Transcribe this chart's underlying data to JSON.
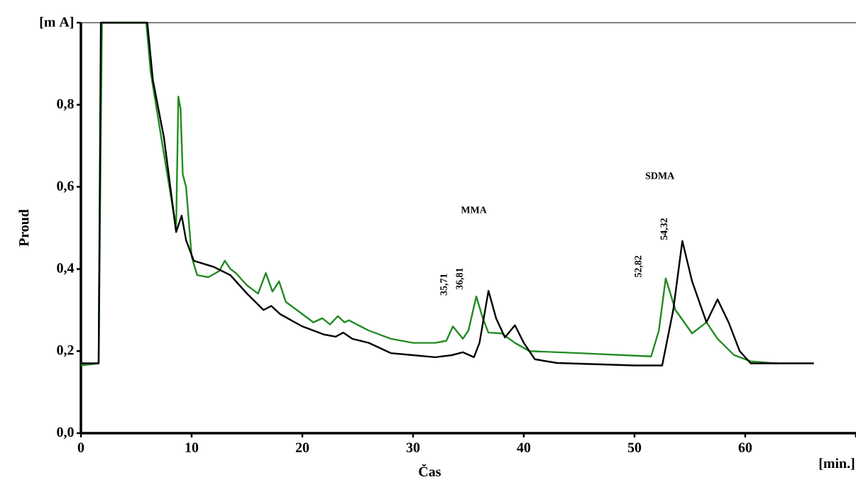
{
  "chart_data": {
    "type": "line",
    "xlabel": "Čas",
    "ylabel": "Proud",
    "xlim": [
      0,
      70
    ],
    "ylim": [
      0,
      1
    ],
    "xticks": [
      0,
      10,
      20,
      30,
      40,
      50,
      60,
      {
        "value": 70,
        "label": null
      }
    ],
    "yticks": [
      {
        "value": 0,
        "label": "0,0"
      },
      {
        "value": 0.2,
        "label": "0,2"
      },
      {
        "value": 0.4,
        "label": "0,4"
      },
      {
        "value": 0.6,
        "label": "0,6"
      },
      {
        "value": 0.8,
        "label": "0,8"
      },
      {
        "value": 1,
        "label": "[m A]"
      }
    ],
    "series": [
      {
        "color": "#228b22",
        "x": [
          0,
          1.6,
          1.9,
          5.9,
          6.3,
          7.5,
          8.6,
          8.8,
          9.0,
          9.2,
          9.5,
          10.0,
          10.5,
          11.5,
          12.5,
          13,
          13.5,
          14,
          15,
          16,
          16.7,
          17.3,
          17.9,
          18.5,
          19.5,
          21,
          21.8,
          22.5,
          23.2,
          23.8,
          24.2,
          26,
          28,
          30,
          32,
          33,
          33.6,
          34.5,
          35,
          35.71,
          36.3,
          36.8,
          38,
          39.2,
          40.5,
          45,
          51.5,
          52.2,
          52.82,
          53.7,
          55.2,
          56.5,
          57.5,
          59,
          60.5,
          62.9
        ],
        "values": [
          0.165,
          0.17,
          1.0,
          1.0,
          0.88,
          0.68,
          0.5,
          0.82,
          0.79,
          0.63,
          0.6,
          0.43,
          0.385,
          0.38,
          0.395,
          0.42,
          0.4,
          0.39,
          0.36,
          0.34,
          0.39,
          0.345,
          0.37,
          0.32,
          0.3,
          0.27,
          0.28,
          0.265,
          0.285,
          0.27,
          0.275,
          0.25,
          0.23,
          0.22,
          0.22,
          0.225,
          0.26,
          0.23,
          0.25,
          0.333,
          0.28,
          0.245,
          0.243,
          0.22,
          0.2,
          0.195,
          0.187,
          0.25,
          0.377,
          0.3,
          0.243,
          0.27,
          0.23,
          0.19,
          0.175,
          0.17
        ]
      },
      {
        "color": "#000000",
        "x": [
          0,
          1.6,
          1.8,
          6.0,
          6.5,
          7.5,
          8.6,
          9.1,
          9.5,
          10.2,
          12,
          13.5,
          15,
          16.5,
          17.2,
          18,
          20,
          22,
          23,
          23.7,
          24.5,
          26,
          28,
          30,
          32,
          33.5,
          34.5,
          35.5,
          36,
          36.81,
          37.5,
          38.3,
          39.2,
          40,
          41,
          43,
          50,
          52.5,
          53.5,
          54.32,
          55.2,
          56.5,
          57.5,
          58.5,
          59.5,
          60.5,
          66.2
        ],
        "values": [
          0.17,
          0.17,
          1.0,
          1.0,
          0.86,
          0.72,
          0.49,
          0.53,
          0.47,
          0.42,
          0.405,
          0.385,
          0.34,
          0.3,
          0.31,
          0.29,
          0.26,
          0.24,
          0.235,
          0.245,
          0.23,
          0.22,
          0.195,
          0.19,
          0.185,
          0.19,
          0.197,
          0.185,
          0.22,
          0.347,
          0.28,
          0.233,
          0.263,
          0.22,
          0.18,
          0.171,
          0.165,
          0.165,
          0.3,
          0.468,
          0.37,
          0.27,
          0.326,
          0.27,
          0.2,
          0.17,
          0.17
        ]
      }
    ],
    "annotations": [
      "MMA",
      {
        "text": "35,71",
        "x": 35.71,
        "y": 0.333
      },
      {
        "text": "36,81",
        "x": 36.81,
        "y": 0.347
      },
      "SDMA",
      {
        "text": "52,82",
        "x": 52.82,
        "y": 0.377
      },
      {
        "text": "54,32",
        "x": 54.32,
        "y": 0.468
      },
      "[min.]"
    ]
  }
}
